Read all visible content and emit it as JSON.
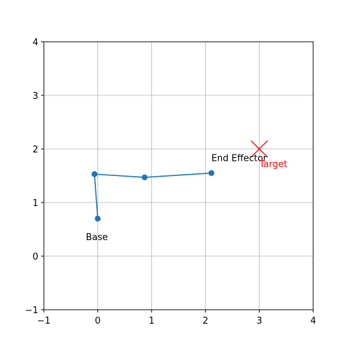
{
  "chart_data": {
    "type": "line",
    "title": "",
    "xlabel": "",
    "ylabel": "",
    "xlim": [
      -1,
      4
    ],
    "ylim": [
      -1,
      4
    ],
    "x_ticks": [
      -1,
      0,
      1,
      2,
      3,
      4
    ],
    "y_ticks": [
      -1,
      0,
      1,
      2,
      3,
      4
    ],
    "grid": true,
    "aspect": "equal",
    "series": [
      {
        "color": "#1f77b4",
        "marker": "circle",
        "points": [
          {
            "x": 0.0,
            "y": 0.7
          },
          {
            "x": -0.06,
            "y": 1.53
          },
          {
            "x": 0.87,
            "y": 1.47
          },
          {
            "x": 2.11,
            "y": 1.55
          }
        ]
      }
    ],
    "target": {
      "x": 3.0,
      "y": 2.0,
      "marker": "x",
      "color": "#ff0000"
    },
    "annotations": [
      {
        "text": "Base",
        "x": 0.0,
        "y": 0.7,
        "color": "#000000"
      },
      {
        "text": "End Effector",
        "x": 2.11,
        "y": 1.55,
        "color": "#000000"
      },
      {
        "text": "Target",
        "x": 3.0,
        "y": 2.0,
        "color": "#ff0000"
      }
    ]
  }
}
